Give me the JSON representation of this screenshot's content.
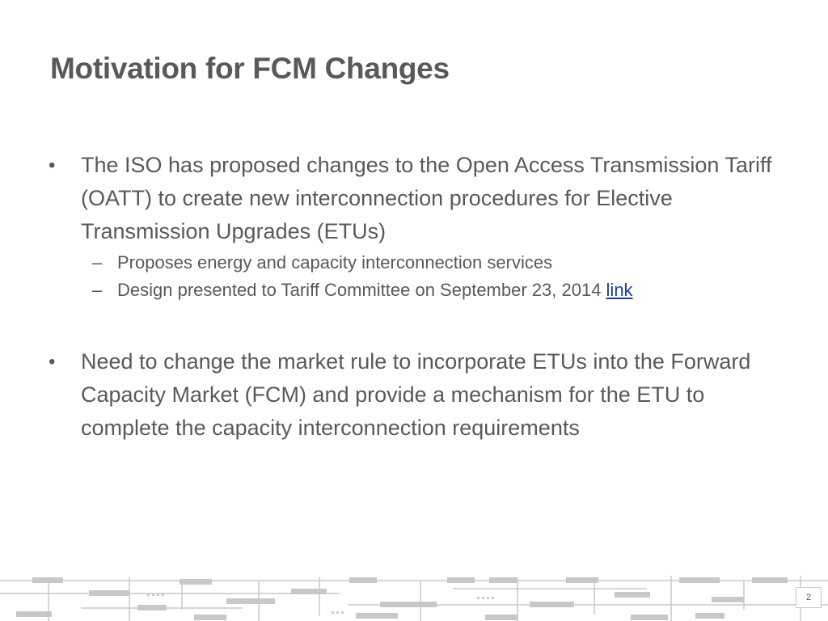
{
  "slide": {
    "title": "Motivation for FCM Changes",
    "bullets": [
      {
        "marker": "•",
        "text": "The ISO has proposed changes to the Open Access Transmission Tariff (OATT) to create new interconnection procedures for Elective Transmission Upgrades (ETUs)",
        "subitems": [
          {
            "marker": "–",
            "text": "Proposes energy and capacity interconnection services"
          },
          {
            "marker": "–",
            "text": "Design presented to Tariff Committee on September 23, 2014 ",
            "link_text": "link"
          }
        ]
      },
      {
        "marker": "•",
        "text": "Need to change the market rule to incorporate ETUs into the Forward Capacity Market (FCM) and provide a mechanism for the ETU to complete the capacity interconnection requirements"
      }
    ],
    "page_number": "2"
  },
  "colors": {
    "text": "#595959",
    "link": "#1f3f9e",
    "circuit_art": "#c8c8c8"
  }
}
